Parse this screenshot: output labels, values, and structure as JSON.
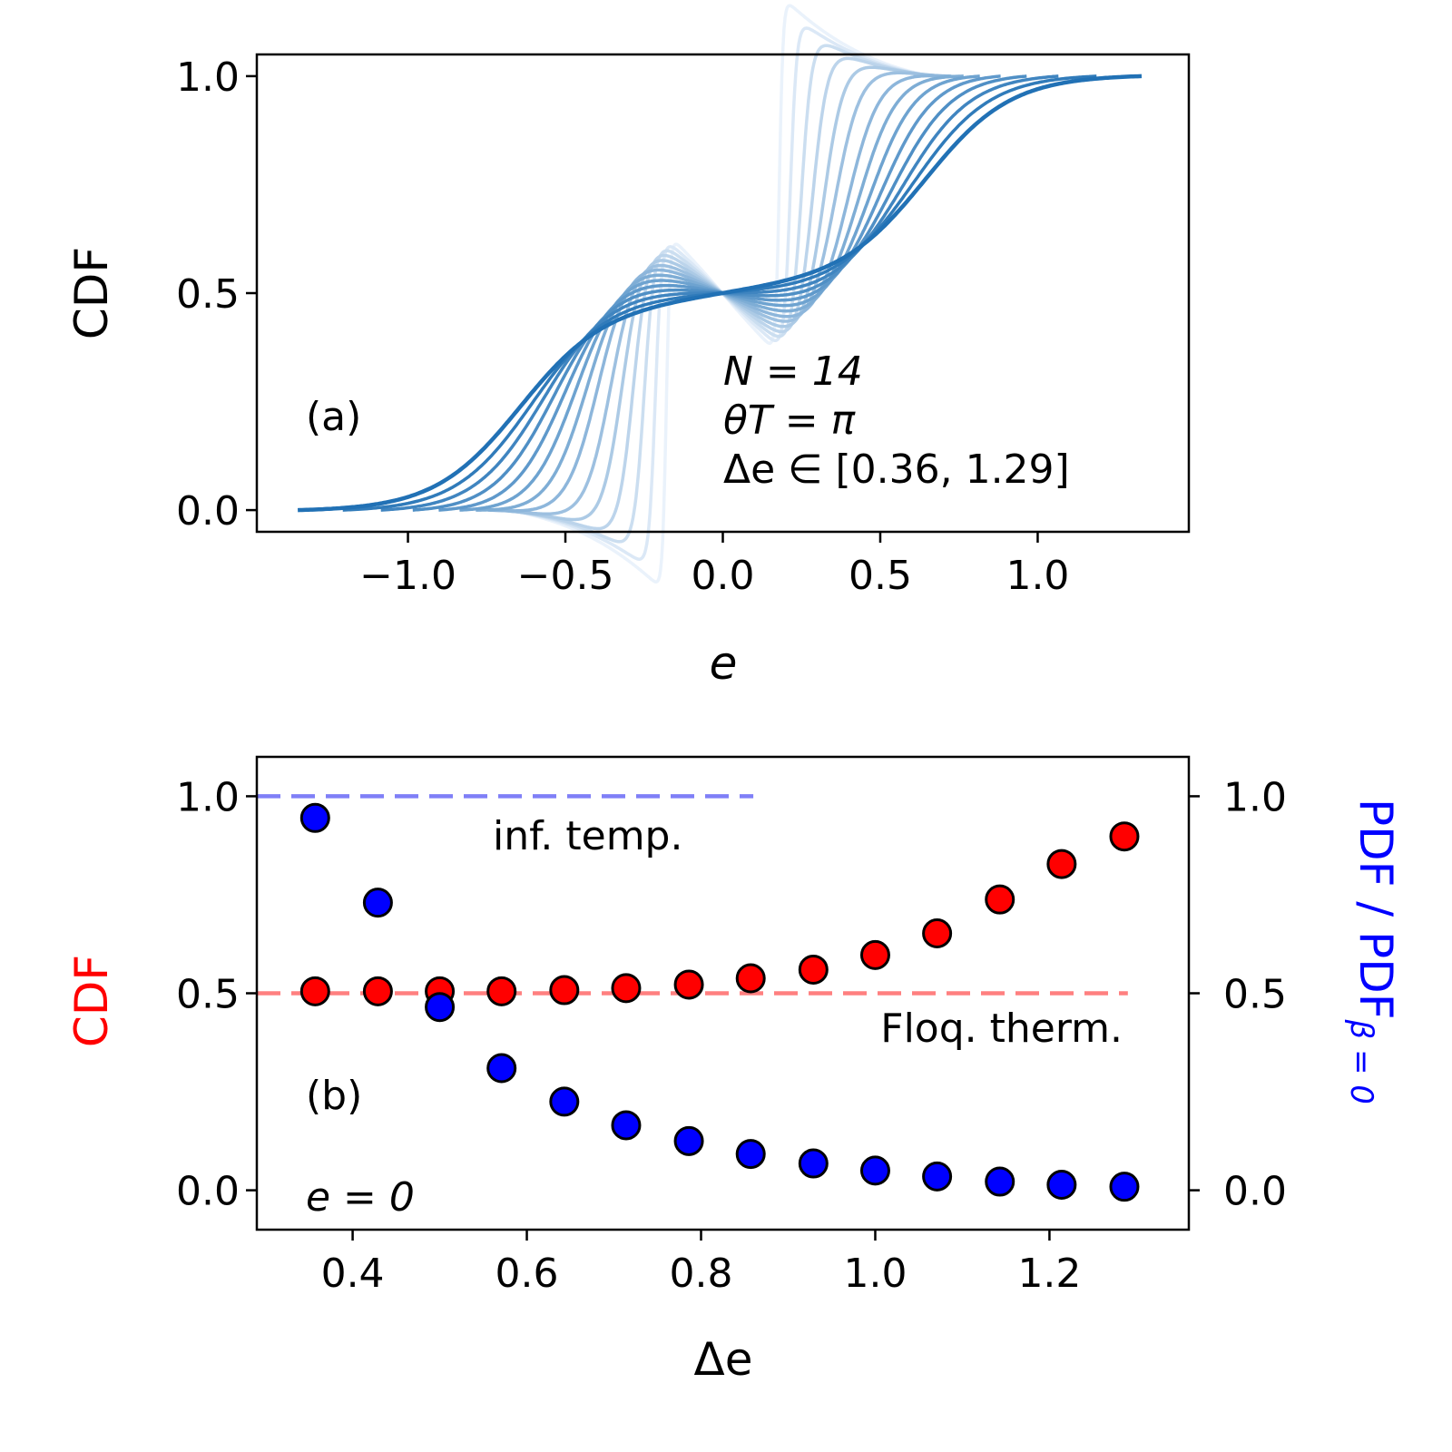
{
  "chart_data": [
    {
      "type": "line",
      "panel_label": "(a)",
      "xlabel": "e",
      "ylabel": "CDF",
      "xlim": [
        -1.48,
        1.48
      ],
      "ylim": [
        -0.05,
        1.05
      ],
      "xticks": [
        -1.0,
        -0.5,
        0.0,
        0.5,
        1.0
      ],
      "xtick_labels": [
        "−1.0",
        "−0.5",
        "0.0",
        "0.5",
        "1.0"
      ],
      "yticks": [
        0.0,
        0.5,
        1.0
      ],
      "ytick_labels": [
        "0.0",
        "0.5",
        "1.0"
      ],
      "annotation_lines": [
        "N = 14",
        "θT = π",
        "Δe ∈ [0.36, 1.29]"
      ],
      "colormap": [
        "#eaf2fb",
        "#2171b5"
      ],
      "series_params": [
        0.36,
        0.43,
        0.5,
        0.57,
        0.64,
        0.71,
        0.79,
        0.86,
        0.93,
        1.0,
        1.07,
        1.14,
        1.21,
        1.29
      ],
      "series_description": "CDF of e for each Δe; low Δe curves step at e ≈ −Δe/2 and +Δe/2, high Δe curves are smooth sigmoids through (0, 0.5); x range [−1.35, 1.33]"
    },
    {
      "type": "scatter",
      "panel_label": "(b)",
      "xlabel": "Δe",
      "ylabel_left": "CDF",
      "ylabel_right": "PDF / PDF",
      "ylabel_right_sub": "β = 0",
      "xlim": [
        0.29,
        1.36
      ],
      "ylim": [
        -0.1,
        1.1
      ],
      "xticks": [
        0.4,
        0.6,
        0.8,
        1.0,
        1.2
      ],
      "xtick_labels": [
        "0.4",
        "0.6",
        "0.8",
        "1.0",
        "1.2"
      ],
      "yticks": [
        0.0,
        0.5,
        1.0
      ],
      "ytick_labels": [
        "0.0",
        "0.5",
        "1.0"
      ],
      "x": [
        0.357,
        0.429,
        0.5,
        0.571,
        0.643,
        0.714,
        0.786,
        0.857,
        0.929,
        1.0,
        1.071,
        1.143,
        1.214,
        1.286
      ],
      "series": [
        {
          "name": "CDF",
          "color": "#ff0000",
          "values": [
            0.505,
            0.505,
            0.505,
            0.505,
            0.508,
            0.513,
            0.522,
            0.538,
            0.56,
            0.597,
            0.652,
            0.738,
            0.828,
            0.898
          ]
        },
        {
          "name": "PDF / PDF_β=0",
          "color": "#0000ff",
          "values": [
            0.945,
            0.73,
            0.465,
            0.31,
            0.225,
            0.165,
            0.125,
            0.092,
            0.068,
            0.05,
            0.035,
            0.022,
            0.014,
            0.009
          ]
        }
      ],
      "reference_lines": [
        {
          "name": "inf. temp.",
          "y": 1.0,
          "x_range": [
            0.29,
            0.86
          ],
          "color": "#7f7ff7",
          "style": "dashed"
        },
        {
          "name": "Floq. therm.",
          "y": 0.5,
          "x_range": [
            0.29,
            1.29
          ],
          "color": "#ff8080",
          "style": "dashed"
        }
      ],
      "labels": {
        "inf_temp": "inf. temp.",
        "floq_therm": "Floq. therm.",
        "e0": "e = 0"
      }
    }
  ]
}
